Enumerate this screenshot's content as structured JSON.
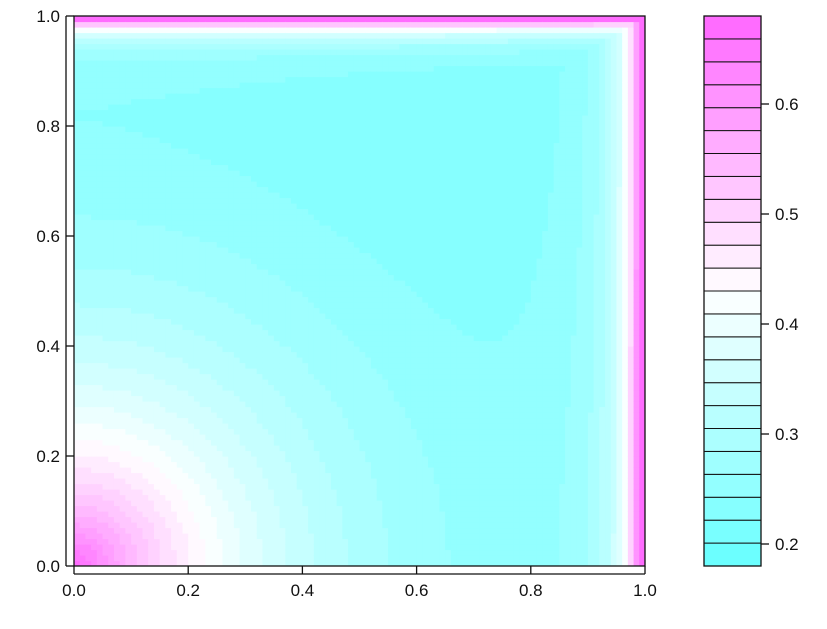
{
  "chart_data": {
    "type": "heatmap",
    "title": "",
    "xlabel": "",
    "ylabel": "",
    "xlim": [
      0.0,
      1.0
    ],
    "ylim": [
      0.0,
      1.0
    ],
    "x_ticks": [
      "0.0",
      "0.2",
      "0.4",
      "0.6",
      "0.8",
      "1.0"
    ],
    "y_ticks": [
      "0.0",
      "0.2",
      "0.4",
      "0.6",
      "0.8",
      "1.0"
    ],
    "colorbar": {
      "range": [
        0.18,
        0.68
      ],
      "levels": 24,
      "ticks": [
        "0.2",
        "0.3",
        "0.4",
        "0.5",
        "0.6"
      ],
      "tick_values": [
        0.2,
        0.3,
        0.4,
        0.5,
        0.6
      ]
    },
    "colors": {
      "low": "#66ffff",
      "mid": "#ffffff",
      "high": "#ff66ff"
    },
    "grid": false,
    "legend_position": "right"
  }
}
